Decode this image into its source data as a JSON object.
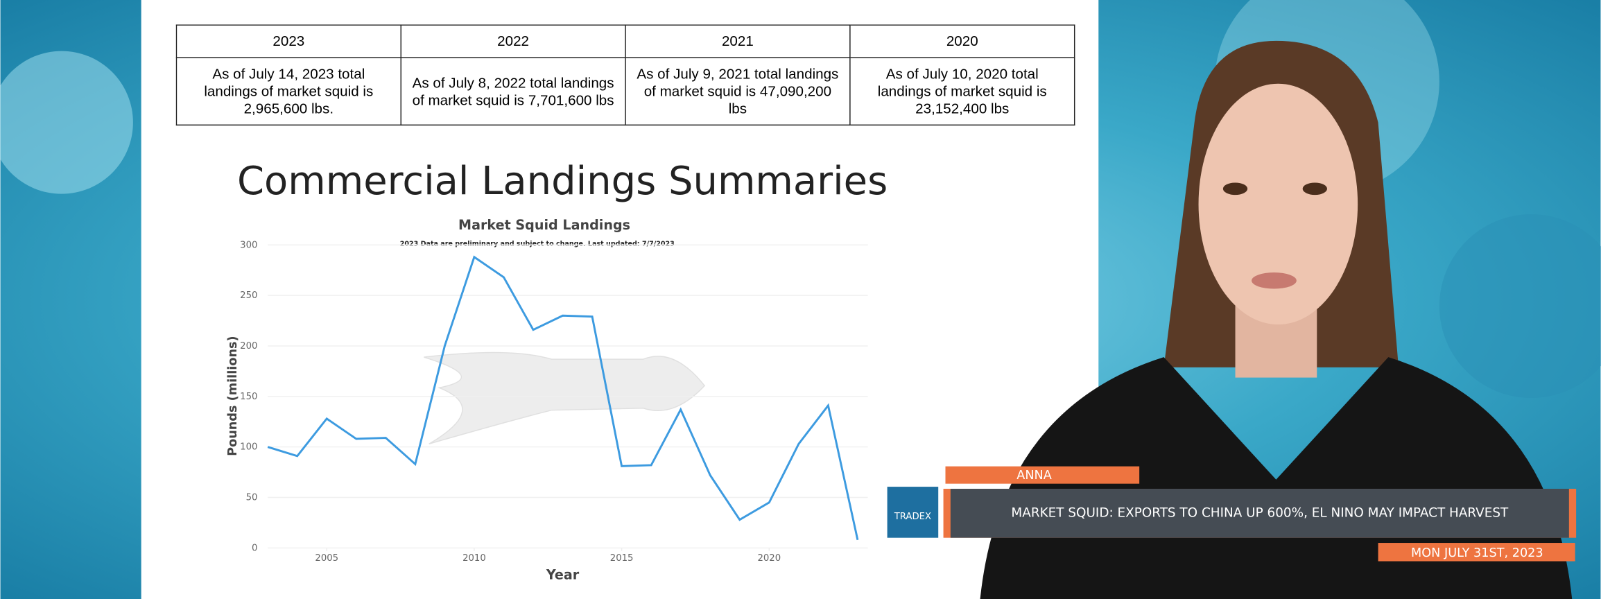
{
  "table": {
    "headers": [
      "2023",
      "2022",
      "2021",
      "2020"
    ],
    "rows": [
      [
        "As of July 14, 2023 total landings of market squid is 2,965,600 lbs.",
        "As of July 8, 2022 total landings of market squid is 7,701,600 lbs",
        "As of July 9, 2021 total landings of market squid is 47,090,200 lbs",
        "As of July 10, 2020 total landings of market squid is 23,152,400 lbs"
      ]
    ]
  },
  "heading": "Commercial Landings Summaries",
  "chart_data": {
    "type": "line",
    "title": "Market Squid Landings",
    "subtitle": "2023 Data are preliminary and subject to change. Last updated: 7/7/2023",
    "x_label": "Year",
    "y_label": "Pounds (millions)",
    "x": [
      2003,
      2004,
      2005,
      2006,
      2007,
      2008,
      2009,
      2010,
      2011,
      2012,
      2013,
      2014,
      2015,
      2016,
      2017,
      2018,
      2019,
      2020,
      2021,
      2022,
      2023
    ],
    "values": [
      100,
      91,
      128,
      108,
      109,
      83,
      200,
      288,
      268,
      216,
      230,
      229,
      81,
      82,
      137,
      72,
      28,
      45,
      103,
      141,
      8
    ],
    "color": "#3d9be0",
    "xlim": [
      2003,
      2023
    ],
    "xticks": [
      2005,
      2010,
      2015,
      2020
    ],
    "ylim": [
      0,
      300
    ],
    "yticks": [
      0,
      50,
      100,
      150,
      200,
      250,
      300
    ],
    "grid": true
  },
  "lower_third": {
    "name": "ANNA",
    "logo": "TRADEX",
    "headline": "MARKET SQUID: EXPORTS TO CHINA UP 600%, EL NINO MAY IMPACT HARVEST",
    "date": "MON JULY 31ST, 2023"
  }
}
